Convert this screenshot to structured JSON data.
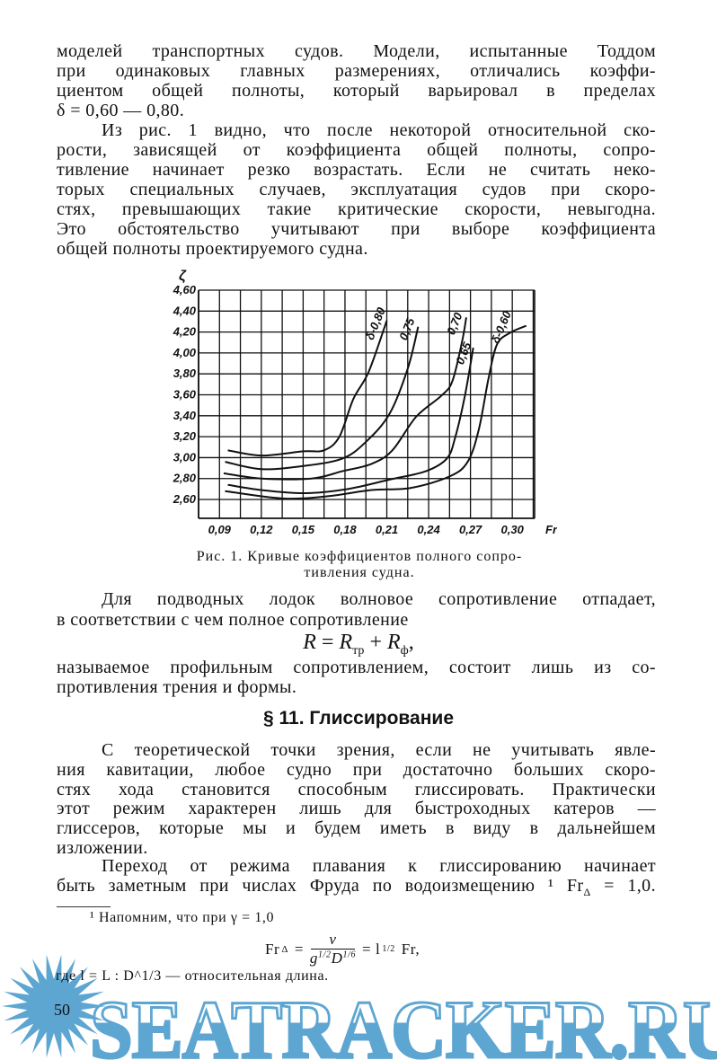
{
  "paragraph1": [
    "моделей транспортных судов. Модели, испытанные Тоддом",
    "при одинаковых главных размерениях, отличались коэффи-",
    "циентом общей полноты, который варьировал в пределах",
    "δ = 0,60 — 0,80."
  ],
  "paragraph2": [
    "Из рис. 1 видно, что после некоторой относительной ско-",
    "рости, зависящей от коэффициента общей полноты, сопро-",
    "тивление начинает резко возрастать. Если не считать неко-",
    "торых специальных случаев, эксплуатация судов при скоро-",
    "стях, превышающих такие критические скорости, невыгодна.",
    "Это обстоятельство учитывают при выборе коэффициента",
    "общей полноты проектируемого судна."
  ],
  "figure_caption": [
    "Рис. 1. Кривые коэффициентов полного сопро-",
    "тивления судна."
  ],
  "paragraph3": [
    "Для подводных лодок волновое сопротивление отпадает,",
    "в соответствии с чем полное сопротивление"
  ],
  "formula_main": {
    "lhs": "R",
    "eq": " = ",
    "r1": "R",
    "r1_sub": "тр",
    "plus": " + ",
    "r2": "R",
    "r2_sub": "ф",
    "tail": ","
  },
  "paragraph3b": [
    "называемое профильным сопротивлением, состоит лишь из со-",
    "противления трения и формы."
  ],
  "section_heading": "§ 11. Глиссирование",
  "paragraph4": [
    "С теоретической точки зрения, если не учитывать явле-",
    "ния кавитации, любое судно при достаточно больших скоро-",
    "стях хода становится способным глиссировать. Практически",
    "этот режим характерен лишь для быстроходных катеров —",
    "глиссеров, которые мы и будем иметь в виду в дальнейшем",
    "изложении."
  ],
  "paragraph5": [
    "Переход от режима плавания к глиссированию начинает",
    "быть заметным при числах Фруда по водоизмещению ¹ Fr",
    "Δ",
    " = 1,0."
  ],
  "footnote": {
    "line1": "¹ Напомним, что при γ = 1,0",
    "formula": {
      "lhs": "Fr",
      "lhs_sub": "Δ",
      "eq": " = ",
      "num": "v",
      "den": "g",
      "den_exp1": "1/2",
      "den2": "D",
      "den_exp2": "1/6",
      "rhs": " = l",
      "rhs_exp": "1/2",
      "rhs_tail": " Fr,"
    },
    "line3": "где l = L : D^1/3 — относительная длина."
  },
  "page_number": "50",
  "watermark": {
    "text": "SEATRACKER.RU",
    "color": "#5ea6d2"
  },
  "chart_data": {
    "type": "line",
    "title": "",
    "xlabel": "Fr",
    "ylabel": "ζ",
    "xlim": [
      0.075,
      0.316
    ],
    "ylim": [
      2.42,
      4.6
    ],
    "grid": true,
    "xticks": [
      0.09,
      0.12,
      0.15,
      0.18,
      0.21,
      0.24,
      0.27,
      0.3
    ],
    "xtick_labels": [
      "0,09",
      "0,12",
      "0,15",
      "0,18",
      "0,21",
      "0,24",
      "0,27",
      "0,30"
    ],
    "yticks": [
      2.6,
      2.8,
      3.0,
      3.2,
      3.4,
      3.6,
      3.8,
      4.0,
      4.2,
      4.4,
      4.6
    ],
    "ytick_labels": [
      "2,60",
      "2,80",
      "3,00",
      "3,20",
      "3,40",
      "3,60",
      "3,80",
      "4,00",
      "4,20",
      "4,40",
      "4,60"
    ],
    "series": [
      {
        "name": "δ-0,80",
        "x": [
          0.096,
          0.12,
          0.15,
          0.165,
          0.176,
          0.186,
          0.197,
          0.21
        ],
        "y": [
          3.07,
          3.02,
          3.06,
          3.07,
          3.2,
          3.56,
          3.82,
          4.31
        ]
      },
      {
        "name": "0,75",
        "x": [
          0.094,
          0.12,
          0.15,
          0.178,
          0.195,
          0.212,
          0.225,
          0.2325
        ],
        "y": [
          2.96,
          2.89,
          2.92,
          2.99,
          3.15,
          3.42,
          3.85,
          4.25
        ]
      },
      {
        "name": "0,70",
        "x": [
          0.093,
          0.12,
          0.156,
          0.178,
          0.199,
          0.214,
          0.231,
          0.249,
          0.257,
          0.264,
          0.267
        ],
        "y": [
          2.85,
          2.8,
          2.8,
          2.87,
          2.94,
          3.07,
          3.39,
          3.59,
          3.73,
          4.11,
          4.34
        ]
      },
      {
        "name": "0,65",
        "x": [
          0.096,
          0.12,
          0.152,
          0.182,
          0.212,
          0.238,
          0.253,
          0.259,
          0.266,
          0.272
        ],
        "y": [
          2.74,
          2.69,
          2.66,
          2.7,
          2.79,
          2.87,
          2.99,
          3.19,
          3.59,
          4.05
        ]
      },
      {
        "name": "δ-0,60",
        "x": [
          0.094,
          0.135,
          0.167,
          0.199,
          0.227,
          0.255,
          0.268,
          0.276,
          0.283,
          0.289,
          0.298,
          0.31
        ],
        "y": [
          2.68,
          2.61,
          2.63,
          2.69,
          2.71,
          2.82,
          2.96,
          3.27,
          3.76,
          4.08,
          4.19,
          4.26
        ]
      }
    ]
  }
}
